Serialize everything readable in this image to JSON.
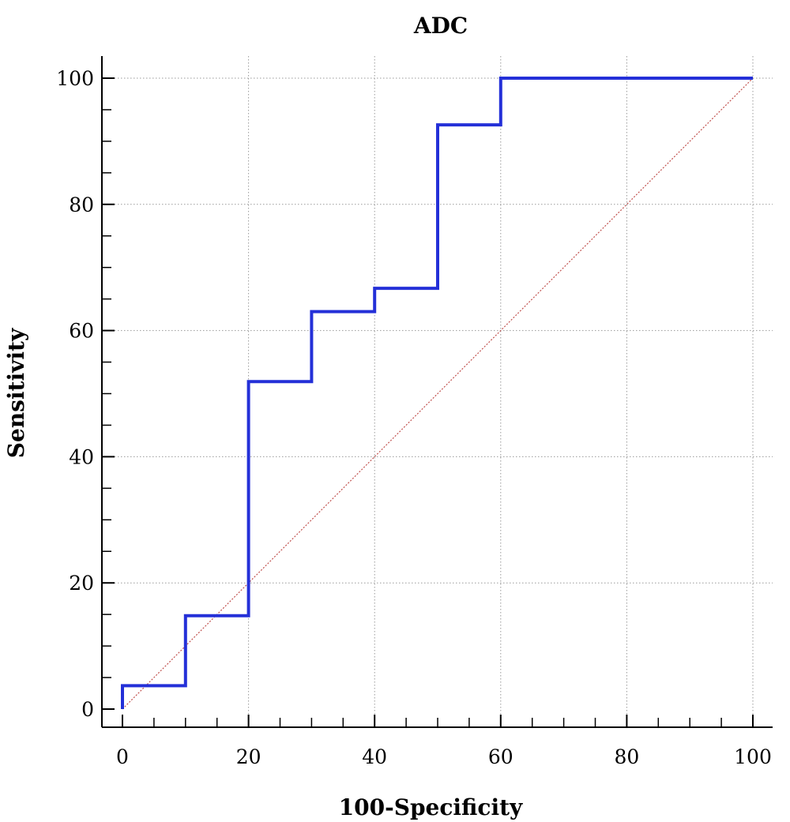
{
  "chart_data": {
    "type": "line",
    "title": "ADC",
    "xlabel": "100-Specificity",
    "ylabel": "Sensitivity",
    "xlim": [
      0,
      100
    ],
    "ylim": [
      0,
      100
    ],
    "xticks": [
      0,
      20,
      40,
      60,
      80,
      100
    ],
    "yticks": [
      0,
      20,
      40,
      60,
      80,
      100
    ],
    "grid": true,
    "series": [
      {
        "color": "#2430d8",
        "x": [
          0,
          0,
          10,
          10,
          20,
          20,
          30,
          30,
          40,
          40,
          50,
          50,
          60,
          60,
          100
        ],
        "y": [
          0,
          3.7,
          3.7,
          14.8,
          14.8,
          51.9,
          51.9,
          63,
          63,
          66.7,
          66.7,
          92.6,
          92.6,
          100,
          100
        ]
      },
      {
        "color": "#c0504d",
        "style": "dotted",
        "x": [
          0,
          100
        ],
        "y": [
          0,
          100
        ]
      }
    ]
  }
}
